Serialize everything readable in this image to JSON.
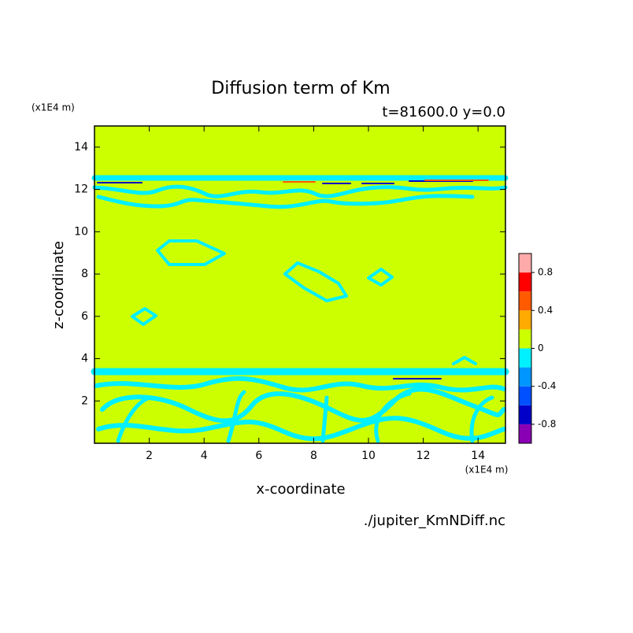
{
  "chart_data": {
    "type": "contour",
    "title": "Diffusion term of Km",
    "subtitle": "t=81600.0 y=0.0",
    "xlabel": "x-coordinate",
    "ylabel": "z-coordinate",
    "x_unit": "(x1E4 m)",
    "y_unit": "(x1E4 m)",
    "source": "./jupiter_KmNDiff.nc",
    "xlim": [
      0,
      15
    ],
    "ylim": [
      0,
      15
    ],
    "xticks": [
      2,
      4,
      6,
      8,
      10,
      12,
      14
    ],
    "yticks": [
      2,
      4,
      6,
      8,
      10,
      12,
      14
    ],
    "colorbar": {
      "bounds": [
        -1,
        -0.8,
        -0.6,
        -0.4,
        -0.2,
        0,
        0.2,
        0.4,
        0.6,
        0.8,
        1
      ],
      "colors": [
        "#8a00b4",
        "#0000c8",
        "#0050ff",
        "#0096ff",
        "#00f0ff",
        "#ccff00",
        "#ffaa00",
        "#ff5a00",
        "#ff0000",
        "#ffaaaa"
      ],
      "ticks": [
        -0.8,
        -0.4,
        0,
        0.4,
        0.8
      ]
    }
  }
}
